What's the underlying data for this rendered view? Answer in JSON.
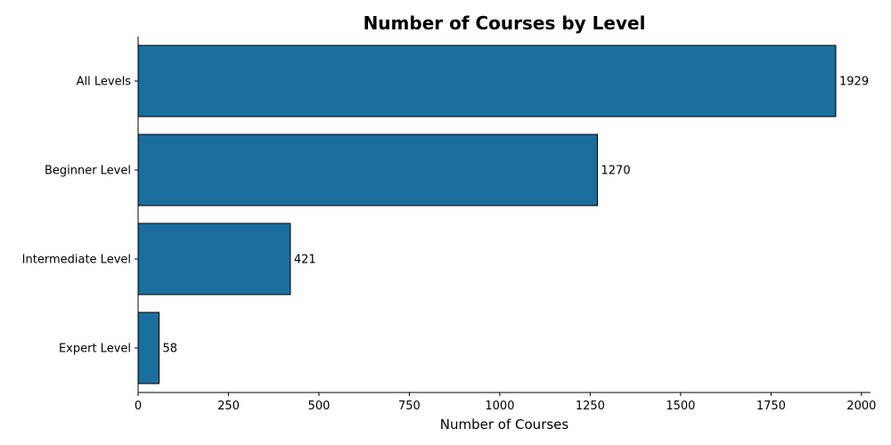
{
  "chart_data": {
    "type": "bar",
    "orientation": "horizontal",
    "title": "Number of Courses by Level",
    "xlabel": "Number of Courses",
    "ylabel": "",
    "categories": [
      "All Levels",
      "Beginner Level",
      "Intermediate Level",
      "Expert Level"
    ],
    "values": [
      1929,
      1270,
      421,
      58
    ],
    "xlim": [
      0,
      2025
    ],
    "xticks": [
      "0",
      "250",
      "500",
      "750",
      "1000",
      "1250",
      "1500",
      "1750",
      "2000"
    ],
    "bar_color": "#1a6e9e",
    "bar_edge_color": "#000000",
    "grid": false,
    "legend": "none"
  }
}
